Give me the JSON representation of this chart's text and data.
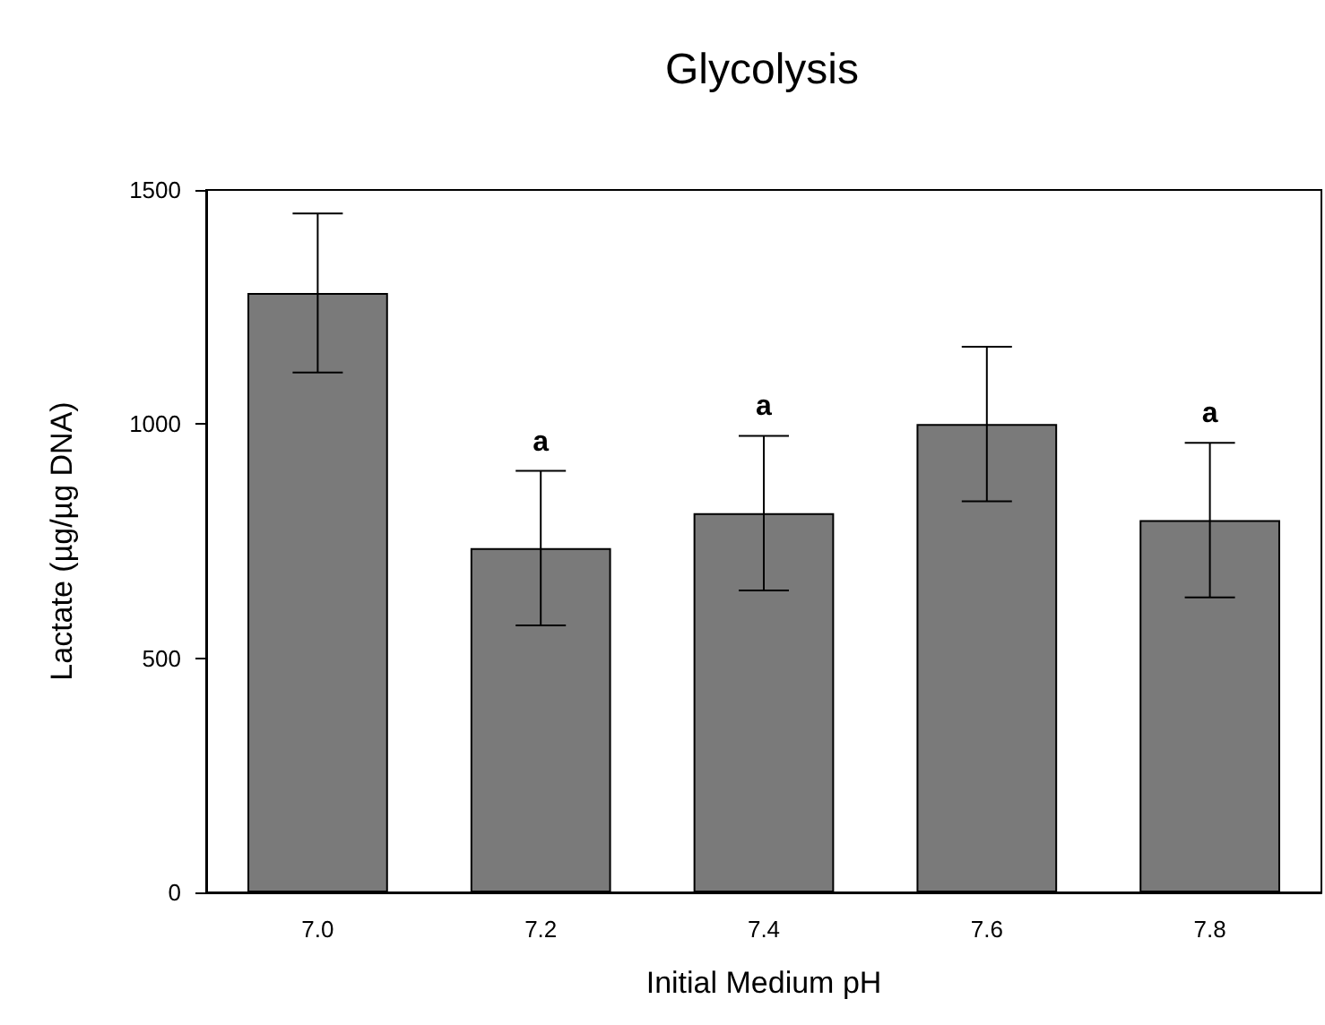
{
  "chart_data": {
    "type": "bar",
    "title": "Glycolysis",
    "xlabel": "Initial Medium pH",
    "ylabel": "Lactate (µg/µg DNA)",
    "categories": [
      "7.0",
      "7.2",
      "7.4",
      "7.6",
      "7.8"
    ],
    "values": [
      1280,
      735,
      810,
      1000,
      795
    ],
    "errors": [
      170,
      165,
      165,
      165,
      165
    ],
    "color": "#7a7a7a",
    "ylim": [
      0,
      1500
    ],
    "yticks": [
      0,
      500,
      1000,
      1500
    ],
    "grid": false,
    "annotations": [
      {
        "text": "a",
        "x": "7.2",
        "y": 900
      },
      {
        "text": "a",
        "x": "7.4",
        "y": 975
      },
      {
        "text": "a",
        "x": "7.8",
        "y": 960
      }
    ]
  }
}
